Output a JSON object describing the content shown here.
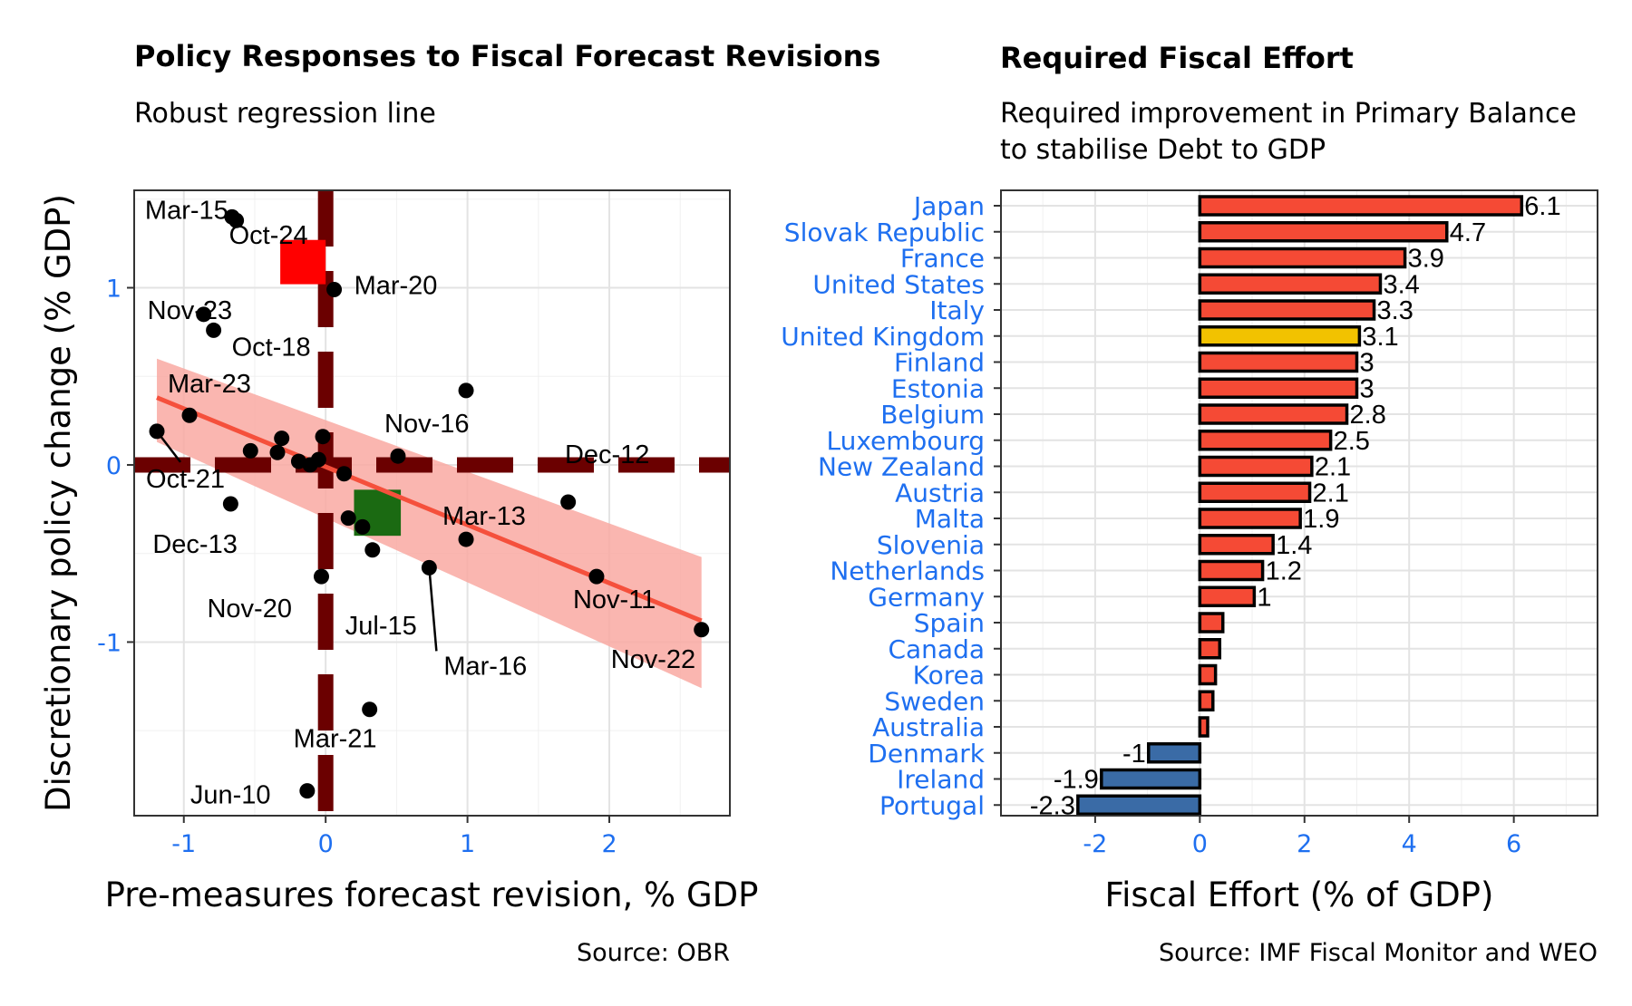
{
  "chart_data": [
    {
      "type": "scatter",
      "title": "Policy Responses to Fiscal Forecast Revisions",
      "subtitle": "Robust regression line",
      "xlabel": "Pre-measures forecast revision, % GDP",
      "ylabel": "Discretionary policy change (% GDP)",
      "caption": "Source: OBR",
      "xlim": [
        -1.35,
        2.85
      ],
      "ylim": [
        -1.98,
        1.55
      ],
      "x_ticks": [
        -1,
        0,
        1,
        2
      ],
      "x_tick_labels": [
        "-1",
        "0",
        "1",
        "2"
      ],
      "y_ticks": [
        -1,
        0,
        1
      ],
      "y_tick_labels": [
        "-1",
        "0",
        "1"
      ],
      "grid": true,
      "points": [
        {
          "label": "Mar-15",
          "x": -0.66,
          "y": 1.4
        },
        {
          "label": "Oct-24",
          "x": -0.63,
          "y": 1.38
        },
        {
          "label": "Mar-20",
          "x": 0.06,
          "y": 0.99
        },
        {
          "label": "Nov-23",
          "x": -0.86,
          "y": 0.85
        },
        {
          "label": "Oct-18",
          "x": -0.79,
          "y": 0.76
        },
        {
          "label": "Mar-23",
          "x": -0.96,
          "y": 0.28
        },
        {
          "label": "Nov-16",
          "x": 0.99,
          "y": 0.42
        },
        {
          "label": "Oct-21",
          "x": -1.19,
          "y": 0.19
        },
        {
          "label": "Dec-12",
          "x": 0.51,
          "y": 0.05
        },
        {
          "label": "Dec-13",
          "x": -0.67,
          "y": -0.22
        },
        {
          "label": "Mar-13",
          "x": 0.99,
          "y": -0.42
        },
        {
          "label": "Jul-15",
          "x": 0.33,
          "y": -0.48
        },
        {
          "label": "Mar-16",
          "x": 0.73,
          "y": -0.58
        },
        {
          "label": "Nov-20",
          "x": -0.03,
          "y": -0.63
        },
        {
          "label": "Nov-11",
          "x": 1.91,
          "y": -0.63
        },
        {
          "label": "Nov-22",
          "x": 2.65,
          "y": -0.93
        },
        {
          "label": "Mar-21",
          "x": 0.31,
          "y": -1.38
        },
        {
          "label": "Jun-10",
          "x": -0.13,
          "y": -1.84
        },
        {
          "label": "",
          "x": -0.53,
          "y": 0.08
        },
        {
          "label": "",
          "x": -0.34,
          "y": 0.07
        },
        {
          "label": "",
          "x": -0.31,
          "y": 0.15
        },
        {
          "label": "",
          "x": -0.19,
          "y": 0.02
        },
        {
          "label": "",
          "x": -0.11,
          "y": 0.0
        },
        {
          "label": "",
          "x": -0.05,
          "y": 0.03
        },
        {
          "label": "",
          "x": -0.02,
          "y": 0.16
        },
        {
          "label": "",
          "x": 0.13,
          "y": -0.05
        },
        {
          "label": "",
          "x": 0.16,
          "y": -0.3
        },
        {
          "label": "",
          "x": 0.26,
          "y": -0.35
        },
        {
          "label": "",
          "x": 1.71,
          "y": -0.21
        }
      ],
      "regression_line": {
        "x": [
          -1.19,
          2.65
        ],
        "y": [
          0.38,
          -0.88
        ]
      },
      "confidence_band": {
        "x": [
          -1.19,
          2.65
        ],
        "lower": [
          0.13,
          -1.26
        ],
        "upper": [
          0.6,
          -0.52
        ]
      },
      "highlight_boxes": [
        {
          "color": "red",
          "x_range": [
            -0.32,
            0.0
          ],
          "y_range": [
            1.02,
            1.27
          ]
        },
        {
          "color": "green",
          "x_range": [
            0.2,
            0.53
          ],
          "y_range": [
            -0.4,
            -0.14
          ]
        }
      ],
      "reference_lines": [
        {
          "axis": "x",
          "value": 0.0,
          "style": "long-dash"
        },
        {
          "axis": "y",
          "value": 0.0,
          "style": "long-dash"
        }
      ],
      "colors": {
        "point": "#000000",
        "regression_line": "#f5503c",
        "band": "#f9a9a2",
        "reference_line": "#6b0000",
        "red_box": "#ff0000",
        "green_box": "#1b6a12"
      }
    },
    {
      "type": "bar",
      "orientation": "horizontal",
      "title": "Required Fiscal Effort",
      "subtitle_lines": [
        "Required improvement in Primary Balance",
        "to stabilise Debt to GDP"
      ],
      "xlabel": "Fiscal Effort (% of GDP)",
      "ylabel": "",
      "caption": "Source: IMF Fiscal Monitor and WEO",
      "xlim": [
        -3.8,
        7.6
      ],
      "x_ticks": [
        -2,
        0,
        2,
        4,
        6
      ],
      "x_tick_labels": [
        "-2",
        "0",
        "2",
        "4",
        "6"
      ],
      "grid": true,
      "categories": [
        "Japan",
        "Slovak Republic",
        "France",
        "United States",
        "Italy",
        "United Kingdom",
        "Finland",
        "Estonia",
        "Belgium",
        "Luxembourg",
        "New Zealand",
        "Austria",
        "Malta",
        "Slovenia",
        "Netherlands",
        "Germany",
        "Spain",
        "Canada",
        "Korea",
        "Sweden",
        "Australia",
        "Denmark",
        "Ireland",
        "Portugal"
      ],
      "values": [
        6.15,
        4.72,
        3.92,
        3.45,
        3.33,
        3.05,
        3.0,
        3.0,
        2.81,
        2.5,
        2.14,
        2.1,
        1.92,
        1.4,
        1.2,
        1.04,
        0.44,
        0.38,
        0.3,
        0.25,
        0.15,
        -0.98,
        -1.88,
        -2.33
      ],
      "value_labels": [
        "6.1",
        "4.7",
        "3.9",
        "3.4",
        "3.3",
        "3.1",
        "3",
        "3",
        "2.8",
        "2.5",
        "2.1",
        "2.1",
        "1.9",
        "1.4",
        "1.2",
        "1",
        "",
        "",
        "",
        "",
        "",
        "-1",
        "-1.9",
        "-2.3"
      ],
      "highlight": "United Kingdom",
      "colors": {
        "positive": "#f54a35",
        "negative": "#3a6ba6",
        "highlight": "#f2c200",
        "outline": "#000000"
      }
    }
  ]
}
